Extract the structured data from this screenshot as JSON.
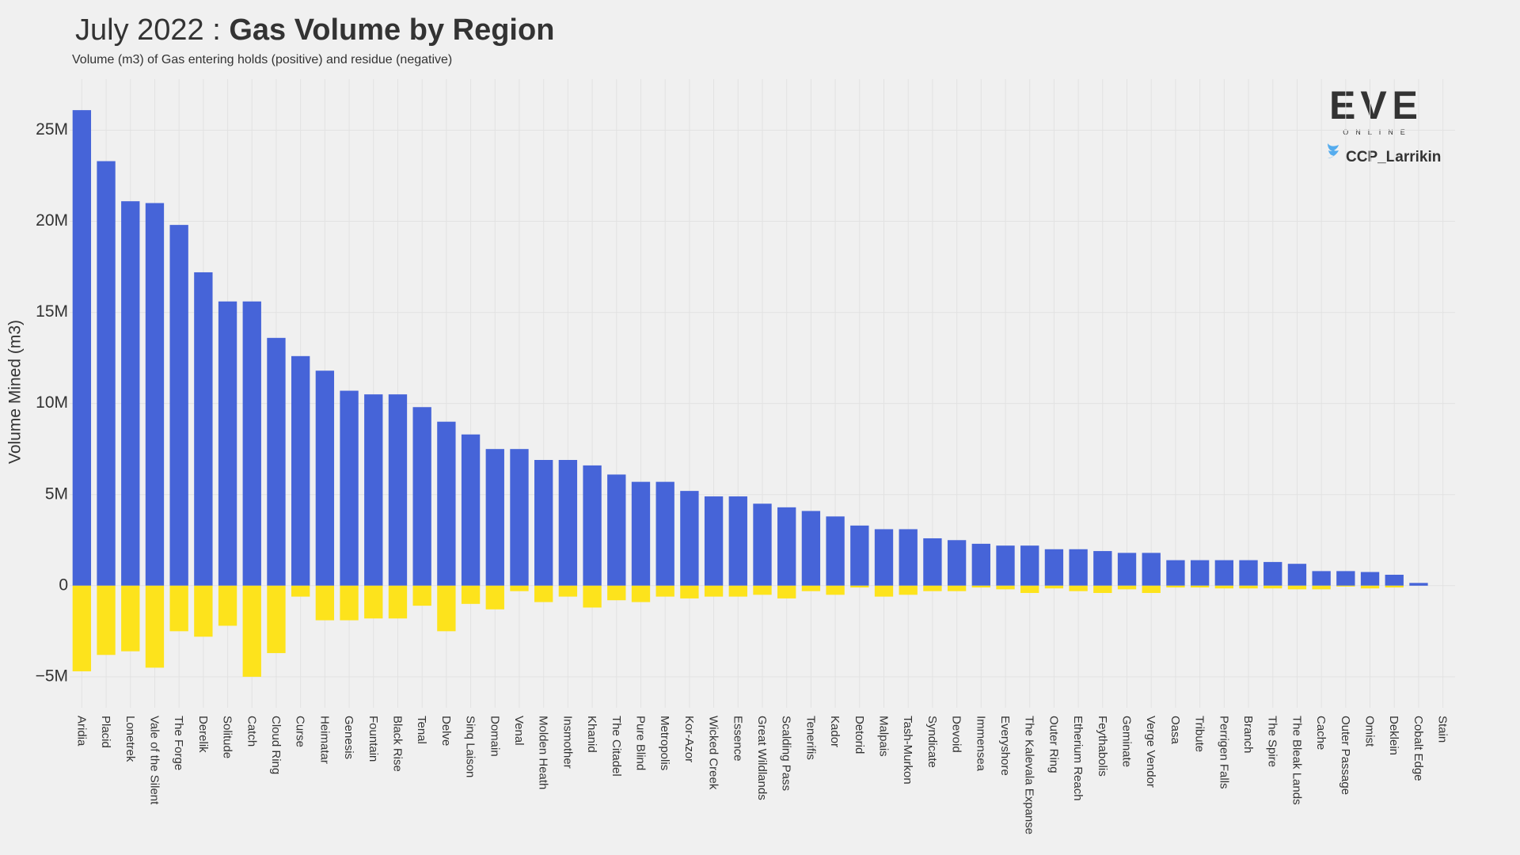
{
  "chart_data": {
    "type": "bar",
    "title_date": "July 2022 :",
    "title": "Gas Volume by Region",
    "subtitle": "Volume (m3) of Gas entering holds (positive) and residue (negative)",
    "y_label": "Volume Mined (m3)",
    "branding": {
      "logo": "EVE",
      "logo_sub": "ONLINE",
      "credit": "CCP_Larrikin"
    },
    "categories": [
      "Aridia",
      "Placid",
      "Lonetrek",
      "Vale of the Silent",
      "The Forge",
      "Derelik",
      "Solitude",
      "Catch",
      "Cloud Ring",
      "Curse",
      "Heimatar",
      "Genesis",
      "Fountain",
      "Black Rise",
      "Tenal",
      "Delve",
      "Sinq Laison",
      "Domain",
      "Venal",
      "Molden Heath",
      "Insmother",
      "Khanid",
      "The Citadel",
      "Pure Blind",
      "Metropolis",
      "Kor-Azor",
      "Wicked Creek",
      "Essence",
      "Great Wildlands",
      "Scalding Pass",
      "Tenerifis",
      "Kador",
      "Detorid",
      "Malpais",
      "Tash-Murkon",
      "Syndicate",
      "Devoid",
      "Immensea",
      "Everyshore",
      "The Kalevala Expanse",
      "Outer Ring",
      "Etherium Reach",
      "Feythabolis",
      "Geminate",
      "Verge Vendor",
      "Oasa",
      "Tribute",
      "Perrigen Falls",
      "Branch",
      "The Spire",
      "The Bleak Lands",
      "Cache",
      "Outer Passage",
      "Omist",
      "Deklein",
      "Cobalt Edge",
      "Stain"
    ],
    "series": [
      {
        "color": "#4664d8",
        "values": [
          26100000,
          23300000,
          21100000,
          21000000,
          19800000,
          17200000,
          15600000,
          15600000,
          13600000,
          12600000,
          11800000,
          10700000,
          10500000,
          10500000,
          9800000,
          9000000,
          8300000,
          7500000,
          7500000,
          6900000,
          6900000,
          6600000,
          6100000,
          5700000,
          5700000,
          5200000,
          4900000,
          4900000,
          4500000,
          4300000,
          4100000,
          3800000,
          3300000,
          3100000,
          3100000,
          2600000,
          2500000,
          2300000,
          2200000,
          2200000,
          2000000,
          2000000,
          1900000,
          1800000,
          1800000,
          1400000,
          1400000,
          1400000,
          1400000,
          1300000,
          1200000,
          800000,
          800000,
          750000,
          600000,
          150000,
          0
        ]
      },
      {
        "color": "#fde31c",
        "values": [
          -4700000,
          -3800000,
          -3600000,
          -4500000,
          -2500000,
          -2800000,
          -2200000,
          -5000000,
          -3700000,
          -600000,
          -1900000,
          -1900000,
          -1800000,
          -1800000,
          -1100000,
          -2500000,
          -1000000,
          -1300000,
          -300000,
          -900000,
          -600000,
          -1200000,
          -800000,
          -900000,
          -600000,
          -700000,
          -600000,
          -600000,
          -500000,
          -700000,
          -300000,
          -500000,
          -100000,
          -600000,
          -500000,
          -300000,
          -300000,
          -100000,
          -200000,
          -400000,
          -150000,
          -300000,
          -400000,
          -200000,
          -400000,
          -100000,
          -100000,
          -150000,
          -150000,
          -150000,
          -200000,
          -200000,
          -50000,
          -150000,
          -100000,
          0,
          0
        ]
      }
    ],
    "ylim": [
      -6700000,
      27800000
    ],
    "yticks": [
      {
        "value": -5000000,
        "label": "−5M"
      },
      0,
      {
        "value": 5000000,
        "label": "5M"
      },
      {
        "value": 10000000,
        "label": "10M"
      },
      {
        "value": 15000000,
        "label": "15M"
      },
      {
        "value": 20000000,
        "label": "20M"
      },
      {
        "value": 25000000,
        "label": "25M"
      }
    ],
    "grid": true
  }
}
